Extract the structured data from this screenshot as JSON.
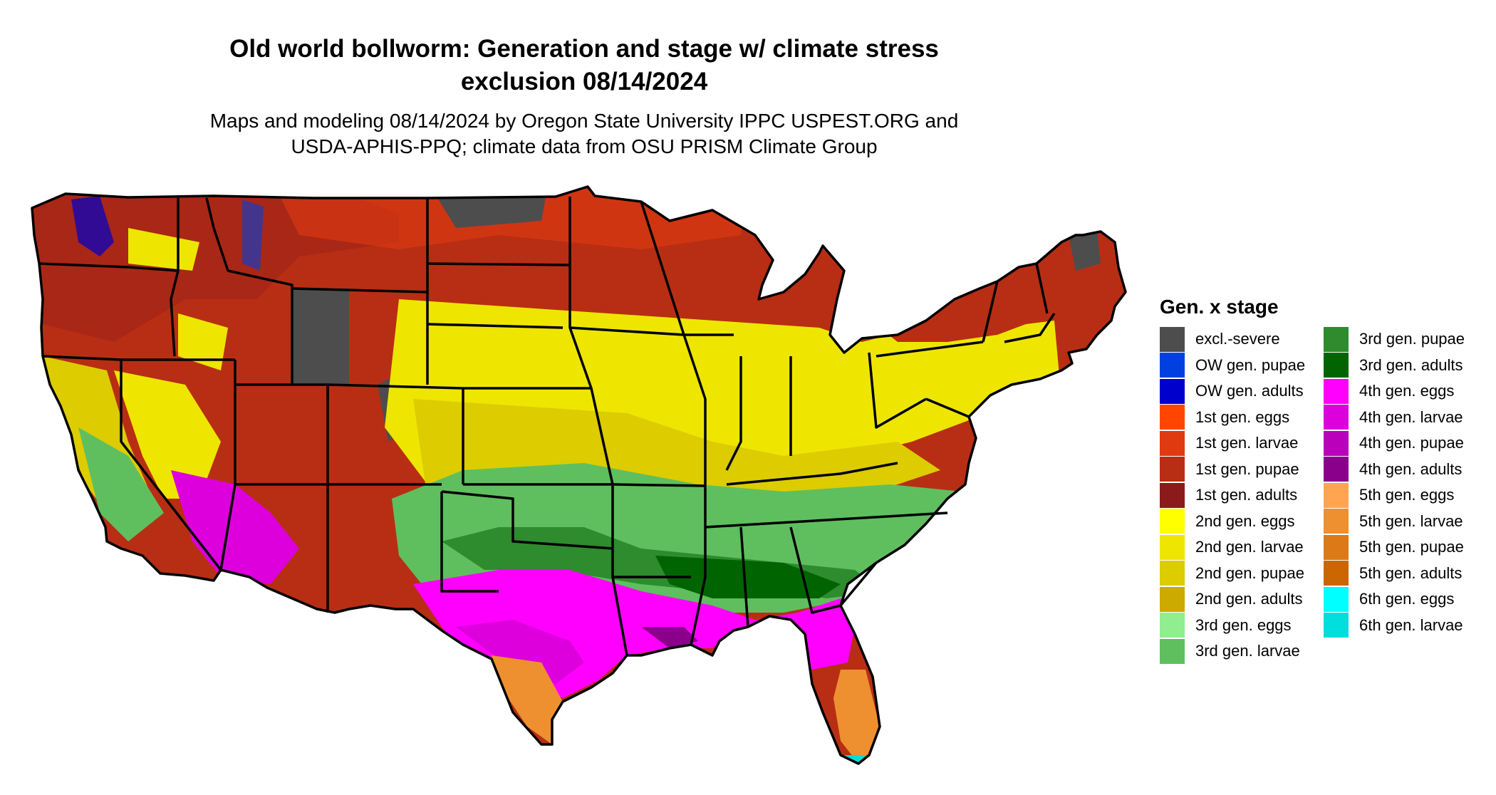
{
  "title_lines": [
    "Old world bollworm: Generation and stage w/ climate stress",
    "exclusion 08/14/2024"
  ],
  "subtitle_lines": [
    "Maps and modeling 08/14/2024 by Oregon State University IPPC USPEST.ORG and",
    "USDA-APHIS-PPQ; climate data from OSU PRISM Climate Group"
  ],
  "legend": {
    "title": "Gen. x stage",
    "items": [
      {
        "label": "excl.-severe",
        "color": "#4d4d4d"
      },
      {
        "label": "OW gen. pupae",
        "color": "#0040e0"
      },
      {
        "label": "OW gen. adults",
        "color": "#0000cc"
      },
      {
        "label": "1st gen. eggs",
        "color": "#ff4500"
      },
      {
        "label": "1st gen. larvae",
        "color": "#e03a10"
      },
      {
        "label": "1st gen. pupae",
        "color": "#b82e14"
      },
      {
        "label": "1st gen. adults",
        "color": "#8b1a1a"
      },
      {
        "label": "2nd gen. eggs",
        "color": "#ffff00"
      },
      {
        "label": "2nd gen. larvae",
        "color": "#eee600"
      },
      {
        "label": "2nd gen. pupae",
        "color": "#ddcc00"
      },
      {
        "label": "2nd gen. adults",
        "color": "#ccaa00"
      },
      {
        "label": "3rd gen. eggs",
        "color": "#90ee90"
      },
      {
        "label": "3rd gen. larvae",
        "color": "#5fbf5f"
      },
      {
        "label": "3rd gen. pupae",
        "color": "#2e8b2e"
      },
      {
        "label": "3rd gen. adults",
        "color": "#006400"
      },
      {
        "label": "4th gen. eggs",
        "color": "#ff00ff"
      },
      {
        "label": "4th gen. larvae",
        "color": "#dd00dd"
      },
      {
        "label": "4th gen. pupae",
        "color": "#bb00bb"
      },
      {
        "label": "4th gen. adults",
        "color": "#8b008b"
      },
      {
        "label": "5th gen. eggs",
        "color": "#ffa54f"
      },
      {
        "label": "5th gen. larvae",
        "color": "#ee9030"
      },
      {
        "label": "5th gen. pupae",
        "color": "#dd7a18"
      },
      {
        "label": "5th gen. adults",
        "color": "#cc6600"
      },
      {
        "label": "6th gen. eggs",
        "color": "#00ffff"
      },
      {
        "label": "6th gen. larvae",
        "color": "#00dddd"
      }
    ]
  }
}
